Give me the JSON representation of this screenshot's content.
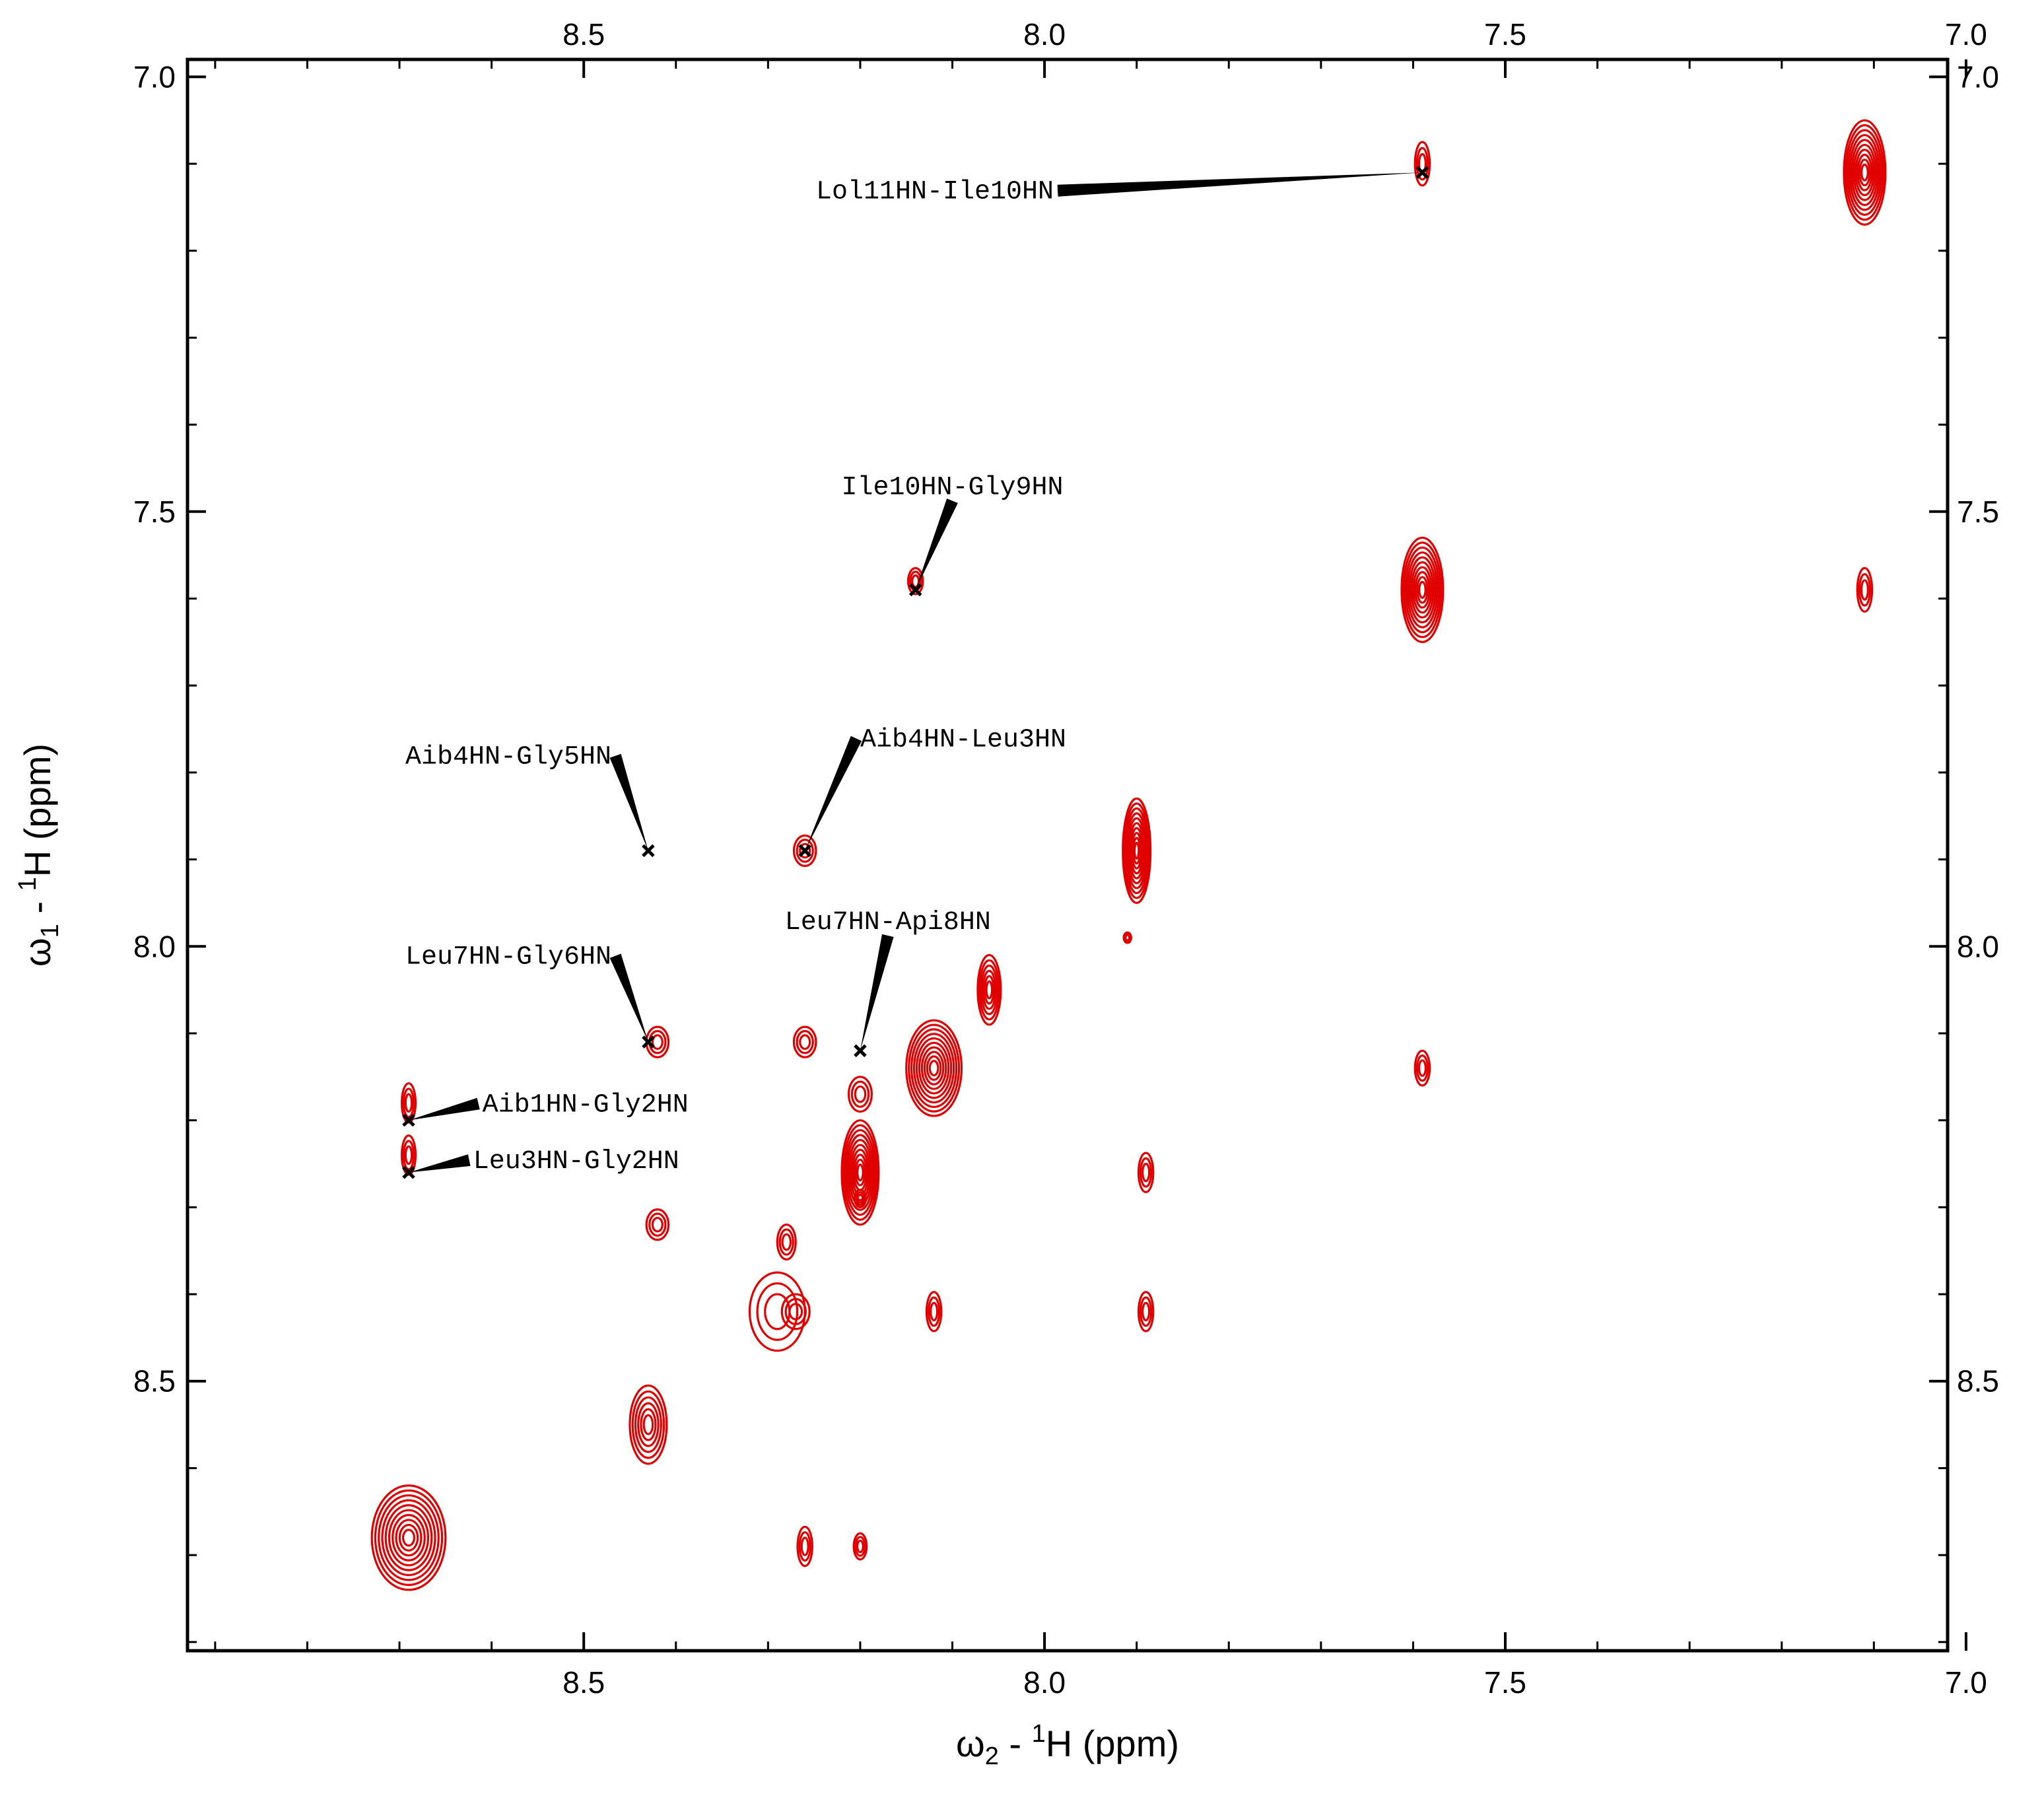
{
  "chart_data": {
    "type": "contour",
    "x_axis": {
      "label_main": "ω",
      "label_sub": "2",
      "label_mid": " - ",
      "label_sup": "1",
      "label_end": "H  (ppm)",
      "range": [
        8.93,
        7.02
      ],
      "reversed": true,
      "major_ticks": [
        8.5,
        8.0,
        7.5,
        7.0
      ],
      "tick_labels": [
        "8.5",
        "8.0",
        "7.5",
        "7.0"
      ]
    },
    "y_axis": {
      "label_main": "ω",
      "label_sub": "1",
      "label_mid": " - ",
      "label_sup": "1",
      "label_end": "H  (ppm)",
      "range": [
        6.98,
        8.81
      ],
      "reversed": true,
      "major_ticks": [
        7.0,
        7.5,
        8.0,
        8.5
      ],
      "tick_labels": [
        "7.0",
        "7.5",
        "8.0",
        "8.5"
      ]
    },
    "contour_color": "#e00000",
    "peaks": [
      {
        "x": 8.69,
        "y": 8.68,
        "w": 0.08,
        "h": 0.12,
        "strength": "strong"
      },
      {
        "x": 8.43,
        "y": 8.55,
        "w": 0.04,
        "h": 0.09,
        "strength": "medium"
      },
      {
        "x": 8.29,
        "y": 8.42,
        "w": 0.06,
        "h": 0.09,
        "strength": "weak"
      },
      {
        "x": 8.27,
        "y": 8.42,
        "w": 0.03,
        "h": 0.04,
        "strength": "weak"
      },
      {
        "x": 8.28,
        "y": 8.34,
        "w": 0.02,
        "h": 0.04,
        "strength": "weak"
      },
      {
        "x": 8.26,
        "y": 7.89,
        "w": 0.024,
        "h": 0.035,
        "strength": "weak"
      },
      {
        "x": 8.26,
        "y": 8.11,
        "w": 0.024,
        "h": 0.035,
        "strength": "weak"
      },
      {
        "x": 8.42,
        "y": 8.11,
        "w": 0.024,
        "h": 0.035,
        "strength": "weak"
      },
      {
        "x": 8.42,
        "y": 8.32,
        "w": 0.024,
        "h": 0.035,
        "strength": "weak"
      },
      {
        "x": 8.69,
        "y": 8.18,
        "w": 0.015,
        "h": 0.045,
        "strength": "weak"
      },
      {
        "x": 8.69,
        "y": 8.24,
        "w": 0.015,
        "h": 0.045,
        "strength": "weak"
      },
      {
        "x": 8.2,
        "y": 8.26,
        "w": 0.04,
        "h": 0.12,
        "strength": "strong"
      },
      {
        "x": 8.2,
        "y": 8.17,
        "w": 0.025,
        "h": 0.04,
        "strength": "weak"
      },
      {
        "x": 8.12,
        "y": 8.14,
        "w": 0.06,
        "h": 0.11,
        "strength": "strong"
      },
      {
        "x": 8.06,
        "y": 8.05,
        "w": 0.025,
        "h": 0.08,
        "strength": "medium"
      },
      {
        "x": 7.9,
        "y": 7.89,
        "w": 0.03,
        "h": 0.12,
        "strength": "strong"
      },
      {
        "x": 7.91,
        "y": 7.99,
        "w": 0.008,
        "h": 0.012,
        "strength": "weak"
      },
      {
        "x": 8.2,
        "y": 8.29,
        "w": 0.012,
        "h": 0.02,
        "strength": "weak"
      },
      {
        "x": 8.14,
        "y": 7.58,
        "w": 0.016,
        "h": 0.03,
        "strength": "weak"
      },
      {
        "x": 7.89,
        "y": 8.26,
        "w": 0.016,
        "h": 0.045,
        "strength": "weak"
      },
      {
        "x": 7.89,
        "y": 8.42,
        "w": 0.016,
        "h": 0.045,
        "strength": "weak"
      },
      {
        "x": 8.12,
        "y": 8.42,
        "w": 0.016,
        "h": 0.045,
        "strength": "weak"
      },
      {
        "x": 8.26,
        "y": 8.69,
        "w": 0.016,
        "h": 0.045,
        "strength": "weak"
      },
      {
        "x": 8.2,
        "y": 8.69,
        "w": 0.014,
        "h": 0.03,
        "strength": "weak"
      },
      {
        "x": 7.59,
        "y": 7.59,
        "w": 0.045,
        "h": 0.12,
        "strength": "strong"
      },
      {
        "x": 7.59,
        "y": 7.1,
        "w": 0.016,
        "h": 0.05,
        "strength": "weak"
      },
      {
        "x": 7.59,
        "y": 8.14,
        "w": 0.016,
        "h": 0.04,
        "strength": "weak"
      },
      {
        "x": 7.11,
        "y": 7.11,
        "w": 0.045,
        "h": 0.12,
        "strength": "strong"
      },
      {
        "x": 7.11,
        "y": 7.59,
        "w": 0.016,
        "h": 0.05,
        "strength": "weak"
      }
    ],
    "annotations": [
      {
        "text": "Lol11HN-Ile10HN",
        "x": 7.59,
        "y": 7.11,
        "tx": 7.99,
        "ty": 7.14,
        "anchor": "end"
      },
      {
        "text": "Ile10HN-Gly9HN",
        "x": 8.14,
        "y": 7.59,
        "tx": 8.1,
        "ty": 7.48,
        "anchor": "middle"
      },
      {
        "text": "Aib4HN-Gly5HN",
        "x": 8.43,
        "y": 7.89,
        "tx": 8.47,
        "ty": 7.79,
        "anchor": "end"
      },
      {
        "text": "Aib4HN-Leu3HN",
        "x": 8.26,
        "y": 7.89,
        "tx": 8.2,
        "ty": 7.77,
        "anchor": "start"
      },
      {
        "text": "Leu7HN-Gly6HN",
        "x": 8.43,
        "y": 8.11,
        "tx": 8.47,
        "ty": 8.02,
        "anchor": "end"
      },
      {
        "text": "Leu7HN-Api8HN",
        "x": 8.2,
        "y": 8.12,
        "tx": 8.17,
        "ty": 7.98,
        "anchor": "middle"
      },
      {
        "text": "Aib1HN-Gly2HN",
        "x": 8.69,
        "y": 8.2,
        "tx": 8.61,
        "ty": 8.19,
        "anchor": "start"
      },
      {
        "text": "Leu3HN-Gly2HN",
        "x": 8.69,
        "y": 8.26,
        "tx": 8.62,
        "ty": 8.255,
        "anchor": "start"
      }
    ]
  }
}
